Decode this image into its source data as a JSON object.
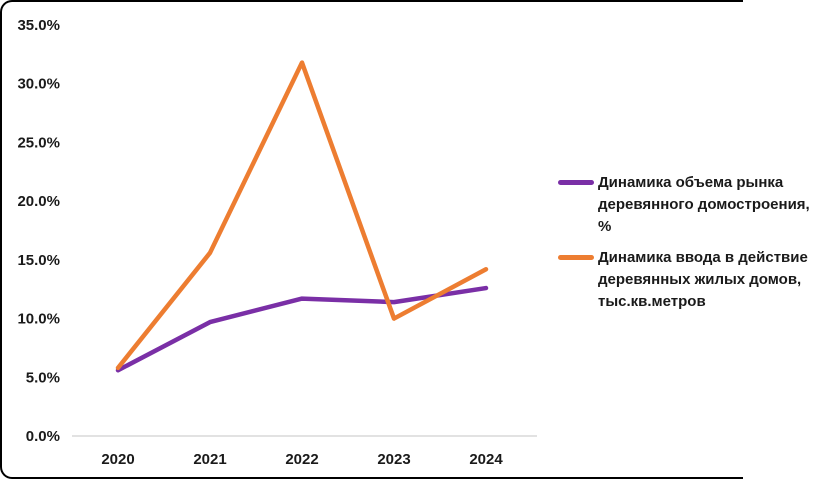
{
  "chart_data": {
    "type": "line",
    "categories": [
      "2020",
      "2021",
      "2022",
      "2023",
      "2024"
    ],
    "series": [
      {
        "name": "Динамика объема рынка деревянного домостроения, %",
        "color": "#7A2FA6",
        "values": [
          5.6,
          9.7,
          11.7,
          11.4,
          12.6
        ]
      },
      {
        "name": "Динамика ввода в действие деревянных жилых домов, тыс.кв.метров",
        "color": "#ED7D31",
        "values": [
          5.8,
          15.6,
          31.8,
          10.0,
          14.2
        ]
      }
    ],
    "ytick_values": [
      35,
      30,
      25,
      20,
      15,
      10,
      5,
      0
    ],
    "ytick_labels": [
      "35.0%",
      "30.0%",
      "25.0%",
      "20.0%",
      "15.0%",
      "10.0%",
      "5.0%",
      "0.0%"
    ],
    "ylim": [
      0,
      35
    ],
    "xlabel": "",
    "ylabel": "",
    "title": "",
    "grid": false,
    "legend_position": "right",
    "axis_line_color": "#D9D9D9"
  }
}
